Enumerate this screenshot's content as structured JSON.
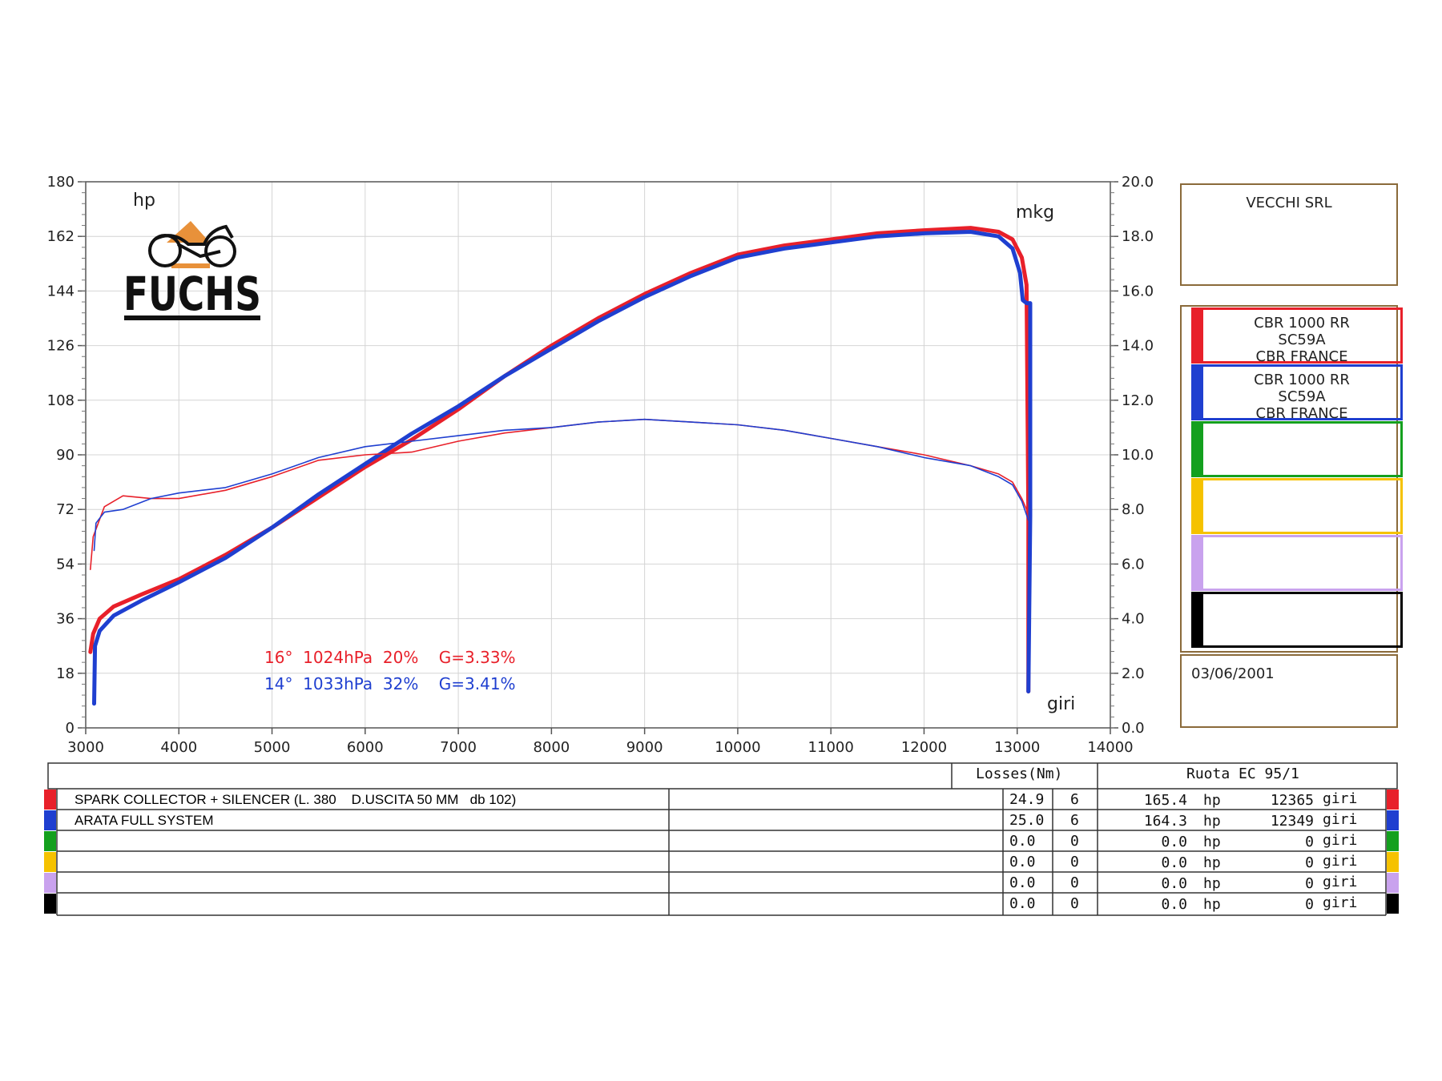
{
  "chart_data": {
    "type": "line",
    "x_label": "giri",
    "y_left_label": "hp",
    "y_right_label": "mkg",
    "x_ticks": [
      "3000",
      "4000",
      "5000",
      "6000",
      "7000",
      "8000",
      "9000",
      "10000",
      "11000",
      "12000",
      "13000",
      "14000"
    ],
    "y_left_ticks": [
      "0",
      "18",
      "36",
      "54",
      "72",
      "90",
      "108",
      "126",
      "144",
      "162",
      "180"
    ],
    "y_right_ticks": [
      "0.0",
      "2.0",
      "4.0",
      "6.0",
      "8.0",
      "10.0",
      "12.0",
      "14.0",
      "16.0",
      "18.0",
      "20.0"
    ],
    "xlim": [
      3000,
      14000
    ],
    "ylim_left": [
      0,
      180
    ],
    "ylim_right": [
      0,
      20
    ],
    "grid": true,
    "series": [
      {
        "name": "CBR 1000 RR SC59A CBR FRANCE",
        "measure": "power",
        "color": "#e8202a",
        "axis": "left",
        "x": [
          3050,
          3080,
          3150,
          3300,
          3600,
          4000,
          4500,
          5000,
          5500,
          6000,
          6500,
          7000,
          7500,
          8000,
          8500,
          9000,
          9500,
          10000,
          10500,
          11000,
          11500,
          12000,
          12500,
          12800,
          12950,
          13050,
          13100,
          13120,
          13120
        ],
        "y": [
          25,
          31,
          36,
          40,
          44,
          49,
          57,
          66,
          76,
          86,
          95,
          105,
          116,
          126,
          135,
          143,
          150,
          156,
          159,
          161,
          163,
          164,
          164.8,
          163.5,
          161,
          155,
          146,
          70,
          12
        ]
      },
      {
        "name": "CBR 1000 RR SC59A CBR FRANCE",
        "measure": "power",
        "color": "#1f3fd0",
        "axis": "left",
        "x": [
          3090,
          3100,
          3150,
          3300,
          3600,
          4000,
          4500,
          5000,
          5500,
          6000,
          6500,
          7000,
          7500,
          8000,
          8500,
          9000,
          9500,
          10000,
          10500,
          11000,
          11500,
          12000,
          12500,
          12800,
          12950,
          13030,
          13060,
          13100,
          13140,
          13140,
          13120
        ],
        "y": [
          8,
          27,
          32,
          37,
          42,
          48,
          56,
          66,
          77,
          87,
          97,
          106,
          116,
          125,
          134,
          142,
          149,
          155,
          158,
          160,
          162,
          163,
          163.5,
          162,
          158,
          150,
          141,
          140,
          140,
          70,
          12
        ]
      },
      {
        "name": "CBR 1000 RR SC59A CBR FRANCE",
        "measure": "torque",
        "color": "#e8202a",
        "axis": "right",
        "x": [
          3050,
          3080,
          3200,
          3400,
          3700,
          4000,
          4500,
          5000,
          5500,
          6000,
          6500,
          7000,
          7500,
          8000,
          8500,
          9000,
          9500,
          10000,
          10500,
          11000,
          11500,
          12000,
          12500,
          12800,
          12950,
          13050,
          13100,
          13120
        ],
        "y": [
          5.8,
          7.0,
          8.1,
          8.5,
          8.4,
          8.4,
          8.7,
          9.2,
          9.8,
          10.0,
          10.1,
          10.5,
          10.8,
          11.0,
          11.2,
          11.3,
          11.2,
          11.1,
          10.9,
          10.6,
          10.3,
          10.0,
          9.6,
          9.3,
          9.0,
          8.4,
          8.0,
          7.6
        ]
      },
      {
        "name": "CBR 1000 RR SC59A CBR FRANCE",
        "measure": "torque",
        "color": "#1f3fd0",
        "axis": "right",
        "x": [
          3090,
          3110,
          3200,
          3400,
          3700,
          4000,
          4500,
          5000,
          5500,
          6000,
          6500,
          7000,
          7500,
          8000,
          8500,
          9000,
          9500,
          10000,
          10500,
          11000,
          11500,
          12000,
          12500,
          12800,
          12950,
          13050,
          13100,
          13120
        ],
        "y": [
          6.5,
          7.5,
          7.9,
          8.0,
          8.4,
          8.6,
          8.8,
          9.3,
          9.9,
          10.3,
          10.5,
          10.7,
          10.9,
          11.0,
          11.2,
          11.3,
          11.2,
          11.1,
          10.9,
          10.6,
          10.3,
          9.9,
          9.6,
          9.2,
          8.9,
          8.3,
          7.8,
          7.6
        ]
      }
    ]
  },
  "conditions": [
    {
      "text": "16°  1024hPa  20%    G=3.33%",
      "color": "#e8202a"
    },
    {
      "text": "14°  1033hPa  32%    G=3.41%",
      "color": "#1f3fd0"
    }
  ],
  "logo": {
    "text": "FUCHS"
  },
  "company": "VECCHI SRL",
  "bikes": [
    {
      "line1": "CBR 1000 RR",
      "line2": "SC59A",
      "line3": "CBR FRANCE",
      "color": "#e8202a"
    },
    {
      "line1": "CBR 1000 RR",
      "line2": "SC59A",
      "line3": "CBR FRANCE",
      "color": "#1f3fd0"
    },
    {
      "line1": "",
      "line2": "",
      "line3": "",
      "color": "#14a01e"
    },
    {
      "line1": "",
      "line2": "",
      "line3": "",
      "color": "#f5c200"
    },
    {
      "line1": "",
      "line2": "",
      "line3": "",
      "color": "#c9a2ee"
    },
    {
      "line1": "",
      "line2": "",
      "line3": "",
      "color": "#000000"
    }
  ],
  "date": "03/06/2001",
  "results_header": {
    "losses": "Losses(Nm)",
    "ruota": "Ruota EC 95/1"
  },
  "results": [
    {
      "color": "#e8202a",
      "desc": "SPARK COLLECTOR + SILENCER (L. 380    D.USCITA 50 MM   db 102)",
      "loss": "24.9",
      "n": "6",
      "hp": "165.4",
      "hp_unit": "hp",
      "rpm": "12365",
      "rpm_unit": "giri"
    },
    {
      "color": "#1f3fd0",
      "desc": "ARATA FULL SYSTEM",
      "loss": "25.0",
      "n": "6",
      "hp": "164.3",
      "hp_unit": "hp",
      "rpm": "12349",
      "rpm_unit": "giri"
    },
    {
      "color": "#14a01e",
      "desc": "",
      "loss": "0.0",
      "n": "0",
      "hp": "0.0",
      "hp_unit": "hp",
      "rpm": "0",
      "rpm_unit": "giri"
    },
    {
      "color": "#f5c200",
      "desc": "",
      "loss": "0.0",
      "n": "0",
      "hp": "0.0",
      "hp_unit": "hp",
      "rpm": "0",
      "rpm_unit": "giri"
    },
    {
      "color": "#c9a2ee",
      "desc": "",
      "loss": "0.0",
      "n": "0",
      "hp": "0.0",
      "hp_unit": "hp",
      "rpm": "0",
      "rpm_unit": "giri"
    },
    {
      "color": "#000000",
      "desc": "",
      "loss": "0.0",
      "n": "0",
      "hp": "0.0",
      "hp_unit": "hp",
      "rpm": "0",
      "rpm_unit": "giri"
    }
  ]
}
